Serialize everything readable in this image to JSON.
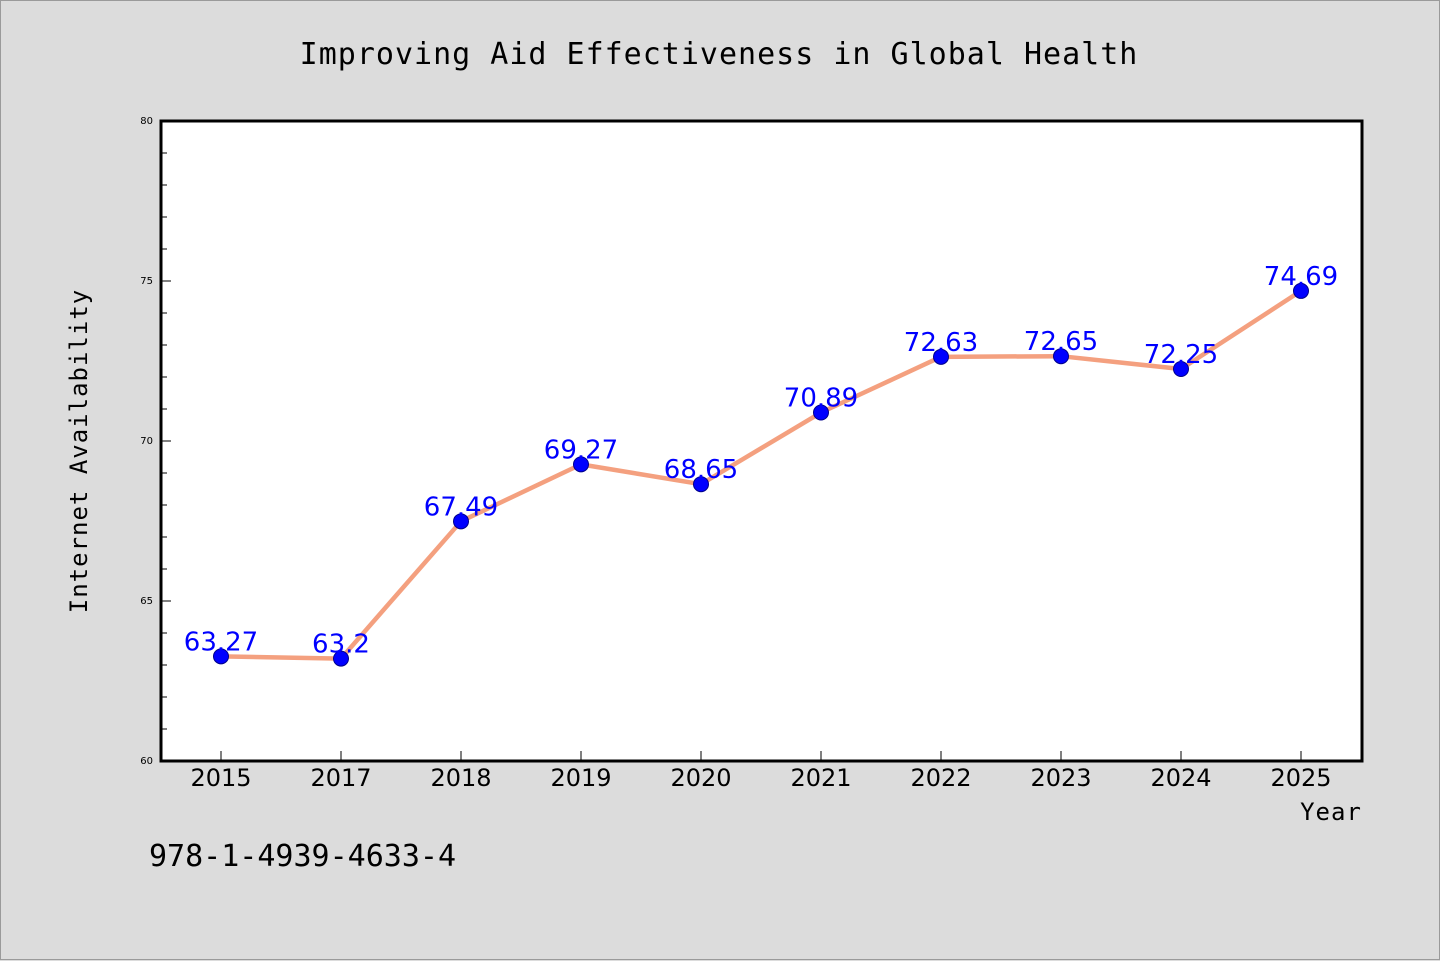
{
  "chart_data": {
    "type": "line",
    "title": "Improving Aid Effectiveness in Global Health",
    "xlabel": "Year",
    "ylabel": "Internet Availability",
    "categories": [
      "2015",
      "2017",
      "2018",
      "2019",
      "2020",
      "2021",
      "2022",
      "2023",
      "2024",
      "2025"
    ],
    "series": [
      {
        "values": [
          63.27,
          63.2,
          67.49,
          69.27,
          68.65,
          70.89,
          72.63,
          72.65,
          72.25,
          74.69
        ],
        "data_labels": [
          "63.27",
          "63.2",
          "67.49",
          "69.27",
          "68.65",
          "70.89",
          "72.63",
          "72.65",
          "72.25",
          "74.69"
        ],
        "line_color": "#f4a07f",
        "marker_color": "#0000ff"
      }
    ],
    "ylim": [
      60,
      80
    ],
    "yticks": [
      "60",
      "65",
      "70",
      "75",
      "80"
    ],
    "grid": false,
    "legend": "none",
    "background_color": "#dcdcdc",
    "plot_background_color": "#ffffff"
  },
  "footnote": "978-1-4939-4633-4"
}
